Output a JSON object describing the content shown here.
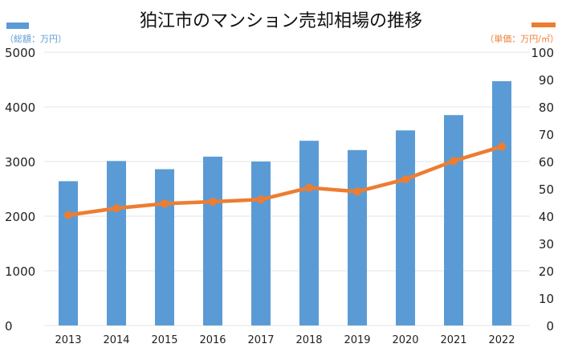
{
  "chart_data": {
    "type": "bar+line",
    "title": "狛江市のマンション売却相場の推移",
    "categories": [
      "2013",
      "2014",
      "2015",
      "2016",
      "2017",
      "2018",
      "2019",
      "2020",
      "2021",
      "2022"
    ],
    "series": [
      {
        "name": "（総額：万円）",
        "type": "bar",
        "axis": "left",
        "color": "#5b9bd5",
        "values": [
          2640,
          3010,
          2860,
          3090,
          3000,
          3380,
          3210,
          3570,
          3850,
          4470
        ]
      },
      {
        "name": "（単価：万円/㎡）",
        "type": "line",
        "axis": "right",
        "color": "#ed7d31",
        "values": [
          40.4,
          42.9,
          44.6,
          45.3,
          46.1,
          50.4,
          49.0,
          53.5,
          60.2,
          65.5
        ]
      }
    ],
    "left_axis": {
      "ylim": [
        0,
        5000
      ],
      "ticks": [
        "0",
        "1000",
        "2000",
        "3000",
        "4000",
        "5000"
      ]
    },
    "right_axis": {
      "ylim": [
        0,
        100
      ],
      "ticks": [
        "0",
        "10",
        "20",
        "30",
        "40",
        "50",
        "60",
        "70",
        "80",
        "90",
        "100"
      ]
    },
    "grid": true,
    "legend_placement": "top-left and top-right"
  }
}
